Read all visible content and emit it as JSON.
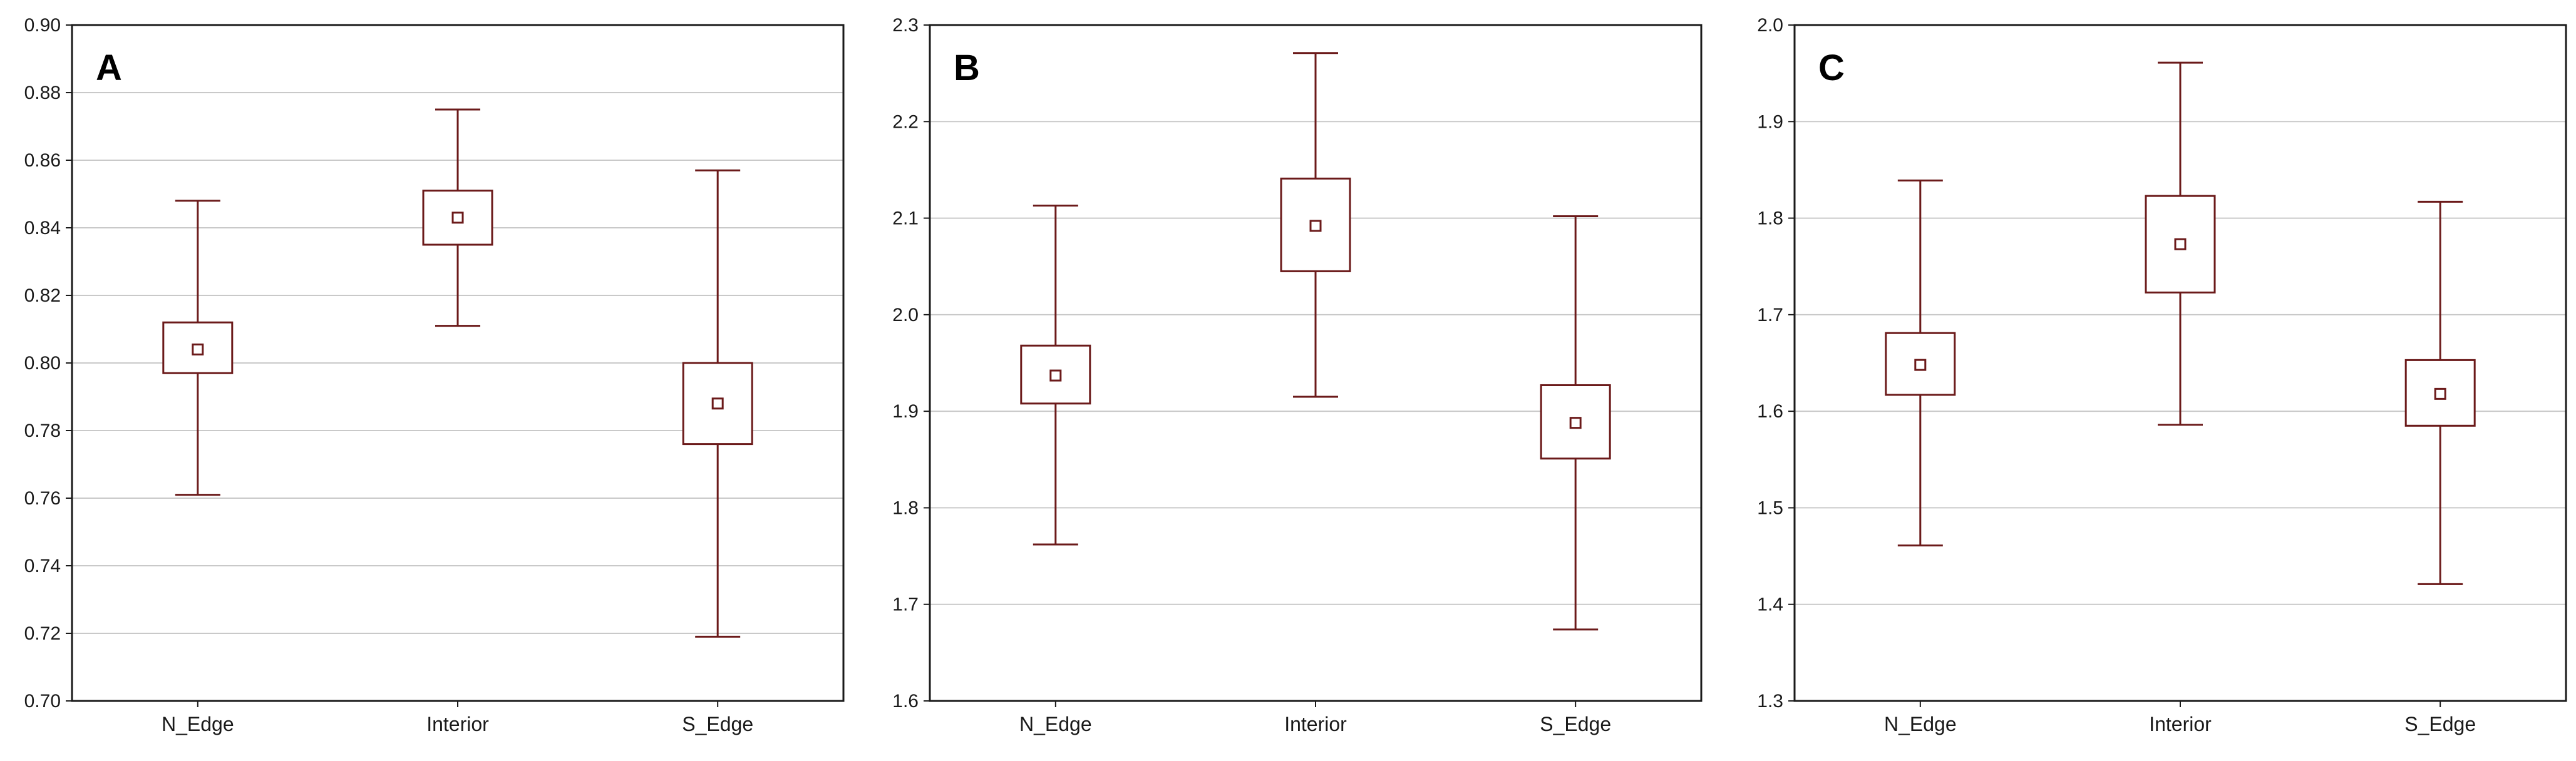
{
  "figure": {
    "background": "#ffffff",
    "plot_background": "#ffffff",
    "grid_color": "#c9c9c9",
    "frame_color": "#1a1a1a",
    "mark_color": "#6b1a1a"
  },
  "chart_data": [
    {
      "type": "box",
      "panel_label": "A",
      "categories": [
        "N_Edge",
        "Interior",
        "S_Edge"
      ],
      "ylim": [
        0.7,
        0.9
      ],
      "yticks": [
        "0.70",
        "0.72",
        "0.74",
        "0.76",
        "0.78",
        "0.80",
        "0.82",
        "0.84",
        "0.86",
        "0.88",
        "0.90"
      ],
      "grid": true,
      "boxes": [
        {
          "mean": 0.804,
          "box_low": 0.797,
          "box_high": 0.812,
          "whisker_low": 0.761,
          "whisker_high": 0.848
        },
        {
          "mean": 0.843,
          "box_low": 0.835,
          "box_high": 0.851,
          "whisker_low": 0.811,
          "whisker_high": 0.875
        },
        {
          "mean": 0.788,
          "box_low": 0.776,
          "box_high": 0.8,
          "whisker_low": 0.719,
          "whisker_high": 0.857
        }
      ]
    },
    {
      "type": "box",
      "panel_label": "B",
      "categories": [
        "N_Edge",
        "Interior",
        "S_Edge"
      ],
      "ylim": [
        1.6,
        2.3
      ],
      "yticks": [
        "1.6",
        "1.7",
        "1.8",
        "1.9",
        "2.0",
        "2.1",
        "2.2",
        "2.3"
      ],
      "grid": true,
      "boxes": [
        {
          "mean": 1.937,
          "box_low": 1.908,
          "box_high": 1.968,
          "whisker_low": 1.762,
          "whisker_high": 2.113
        },
        {
          "mean": 2.092,
          "box_low": 2.045,
          "box_high": 2.141,
          "whisker_low": 1.915,
          "whisker_high": 2.271
        },
        {
          "mean": 1.888,
          "box_low": 1.851,
          "box_high": 1.927,
          "whisker_low": 1.674,
          "whisker_high": 2.102
        }
      ]
    },
    {
      "type": "box",
      "panel_label": "C",
      "categories": [
        "N_Edge",
        "Interior",
        "S_Edge"
      ],
      "ylim": [
        1.3,
        2.0
      ],
      "yticks": [
        "1.3",
        "1.4",
        "1.5",
        "1.6",
        "1.7",
        "1.8",
        "1.9",
        "2.0"
      ],
      "grid": true,
      "boxes": [
        {
          "mean": 1.648,
          "box_low": 1.617,
          "box_high": 1.681,
          "whisker_low": 1.461,
          "whisker_high": 1.839
        },
        {
          "mean": 1.773,
          "box_low": 1.723,
          "box_high": 1.823,
          "whisker_low": 1.586,
          "whisker_high": 1.961
        },
        {
          "mean": 1.618,
          "box_low": 1.585,
          "box_high": 1.653,
          "whisker_low": 1.421,
          "whisker_high": 1.817
        }
      ]
    }
  ]
}
